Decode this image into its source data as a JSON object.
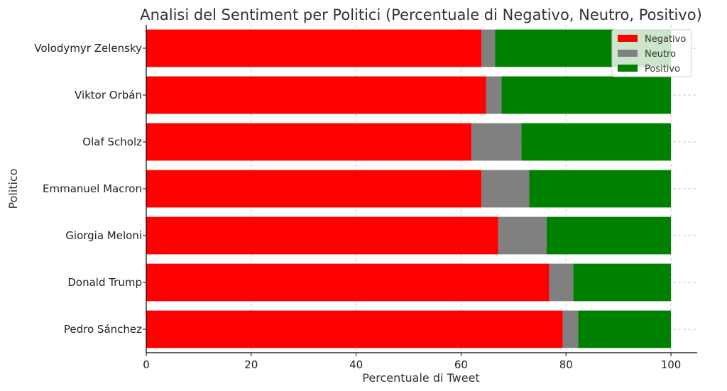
{
  "chart_data": {
    "type": "bar",
    "orientation": "horizontal",
    "stacked": true,
    "title": "Analisi del Sentiment per Politici (Percentuale di Negativo, Neutro, Positivo)",
    "xlabel": "Percentuale di Tweet",
    "ylabel": "Politico",
    "xlim": [
      0,
      105
    ],
    "xticks": [
      0,
      20,
      40,
      60,
      80,
      100
    ],
    "grid": true,
    "legend_position": "top-right",
    "categories": [
      "Volodymyr Zelensky",
      "Viktor Orbán",
      "Olaf Scholz",
      "Emmanuel Macron",
      "Giorgia Meloni",
      "Donald Trump",
      "Pedro Sánchez"
    ],
    "series": [
      {
        "name": "Negativo",
        "color": "#ff0000",
        "values": [
          63.9,
          64.8,
          62.0,
          63.9,
          67.1,
          76.8,
          79.4
        ]
      },
      {
        "name": "Neutro",
        "color": "#808080",
        "values": [
          2.6,
          2.9,
          9.5,
          9.1,
          9.2,
          4.6,
          2.9
        ]
      },
      {
        "name": "Positivo",
        "color": "#008000",
        "values": [
          33.5,
          32.3,
          28.5,
          27.0,
          23.7,
          18.6,
          17.7
        ]
      }
    ]
  }
}
